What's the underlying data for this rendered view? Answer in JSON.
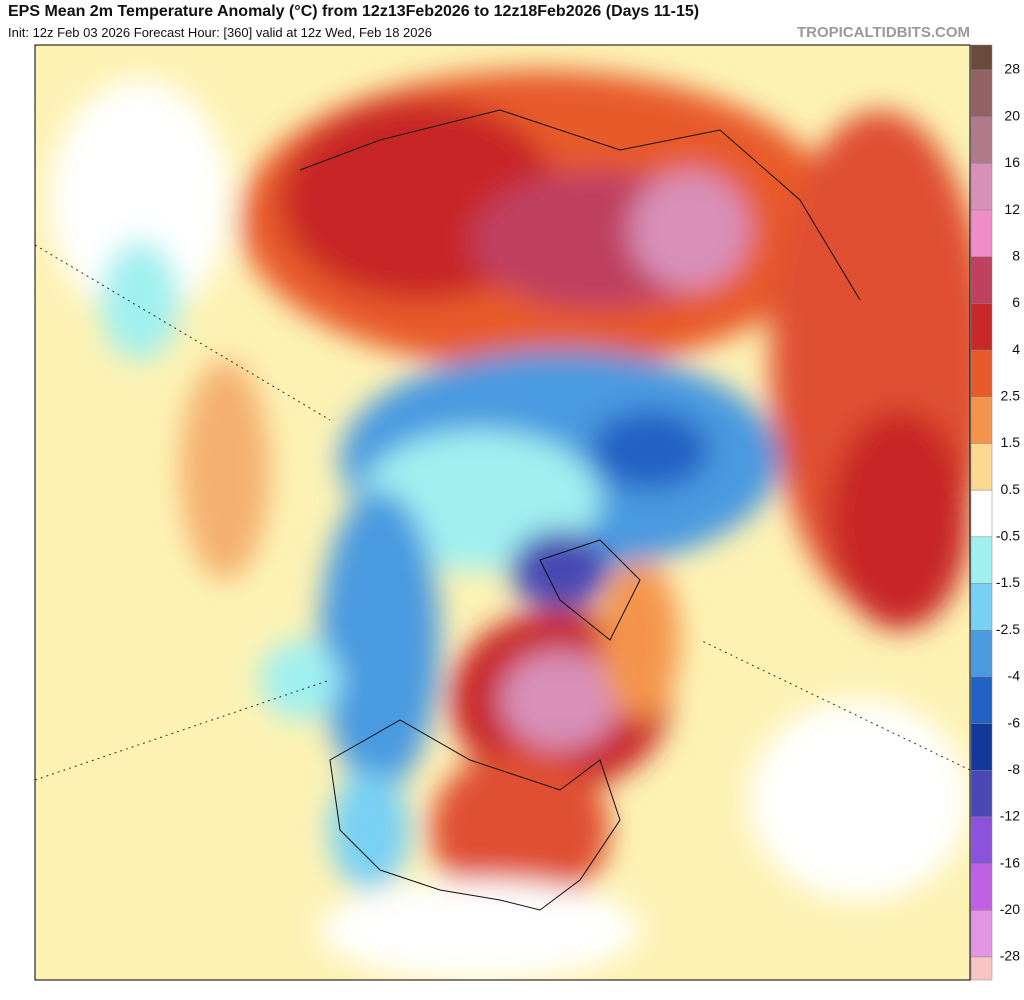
{
  "header": {
    "title": "EPS Mean 2m Temperature Anomaly (°C) from 12z13Feb2026 to 12z18Feb2026 (Days 11-15)",
    "subtitle": "Init: 12z Feb 03 2026   Forecast Hour: [360]   valid at 12z Wed, Feb 18 2026",
    "credit": "TROPICALTIDBITS.COM"
  },
  "colorbar": {
    "ticks": [
      28,
      20,
      16,
      12,
      8,
      6,
      4,
      2.5,
      1.5,
      0.5,
      -0.5,
      -1.5,
      -2.5,
      -4,
      -6,
      -8,
      -12,
      -16,
      -20,
      -28
    ],
    "colors": [
      "#6b4a3a",
      "#946262",
      "#b07a8a",
      "#d890b8",
      "#f08cc8",
      "#c04060",
      "#c82828",
      "#e85a2c",
      "#f4944c",
      "#fcd890",
      "#ffffff",
      "#a0f0f0",
      "#78d0f4",
      "#4a9ae0",
      "#2262c4",
      "#14389a",
      "#4a48b4",
      "#8c52dc",
      "#c060e4",
      "#e496e4",
      "#f8c4c4"
    ]
  }
}
